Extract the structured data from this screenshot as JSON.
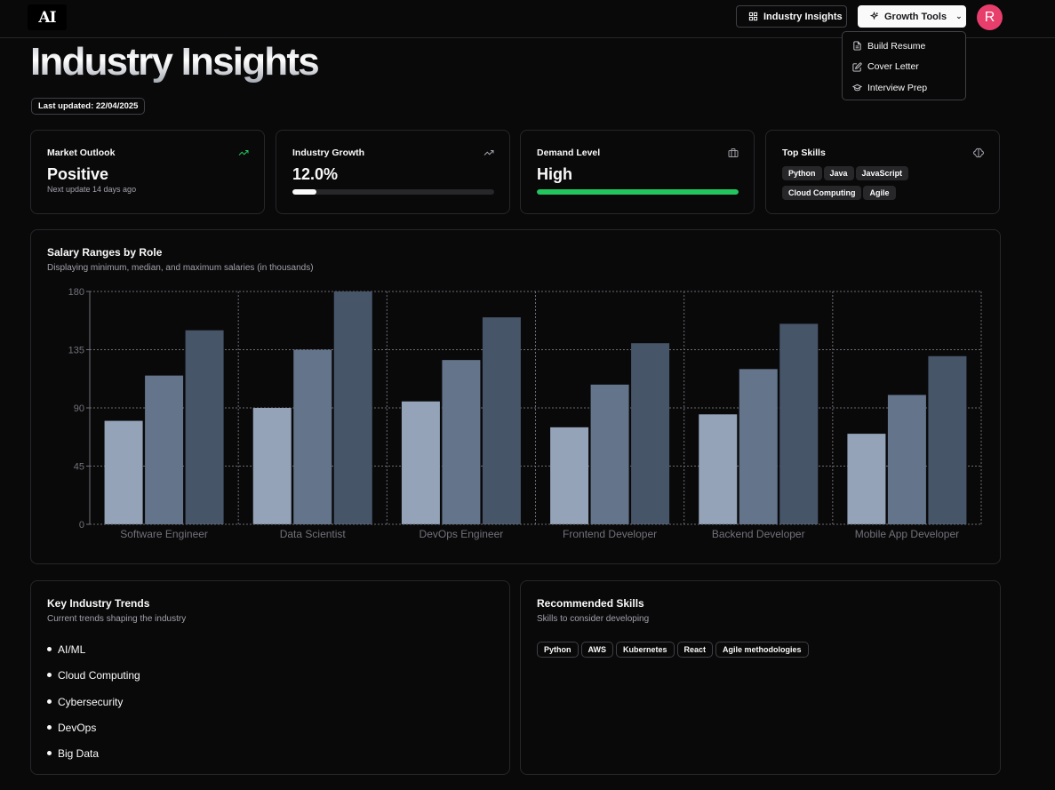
{
  "header": {
    "logo": "AI",
    "insights_label": "Industry Insights",
    "growth_label": "Growth Tools",
    "avatar_initial": "R"
  },
  "dropdown": {
    "items": [
      {
        "label": "Build Resume",
        "icon": "file-text-icon"
      },
      {
        "label": "Cover Letter",
        "icon": "pen-square-icon"
      },
      {
        "label": "Interview Prep",
        "icon": "graduation-cap-icon"
      }
    ]
  },
  "page": {
    "title": "Industry Insights",
    "last_updated": "Last updated: 22/04/2025"
  },
  "stats": {
    "outlook": {
      "label": "Market Outlook",
      "value": "Positive",
      "sub": "Next update 14 days ago",
      "icon": "trending-up-icon",
      "color": "#22c55e"
    },
    "growth": {
      "label": "Industry Growth",
      "value": "12.0%",
      "progress": 0.12,
      "icon": "trending-up-icon"
    },
    "demand": {
      "label": "Demand Level",
      "value": "High",
      "progress": 1.0,
      "color": "#22c55e",
      "icon": "briefcase-icon"
    },
    "skills": {
      "label": "Top Skills",
      "icon": "brain-icon",
      "items": [
        "Python",
        "Java",
        "JavaScript",
        "Cloud Computing",
        "Agile"
      ]
    }
  },
  "chart": {
    "title": "Salary Ranges by Role",
    "subtitle": "Displaying minimum, median, and maximum salaries (in thousands)"
  },
  "chart_data": {
    "type": "bar",
    "categories": [
      "Software Engineer",
      "Data Scientist",
      "DevOps Engineer",
      "Frontend Developer",
      "Backend Developer",
      "Mobile App Developer"
    ],
    "series": [
      {
        "values": [
          80,
          90,
          95,
          75,
          85,
          70
        ],
        "color": "#94a3b8"
      },
      {
        "values": [
          115,
          135,
          127,
          108,
          120,
          100
        ],
        "color": "#64748b"
      },
      {
        "values": [
          150,
          180,
          160,
          140,
          155,
          130
        ],
        "color": "#475569"
      }
    ],
    "yticks": [
      0,
      45,
      90,
      135,
      180
    ],
    "ylim": [
      0,
      180
    ],
    "grid": true
  },
  "trends": {
    "title": "Key Industry Trends",
    "subtitle": "Current trends shaping the industry",
    "items": [
      "AI/ML",
      "Cloud Computing",
      "Cybersecurity",
      "DevOps",
      "Big Data"
    ]
  },
  "recommended": {
    "title": "Recommended Skills",
    "subtitle": "Skills to consider developing",
    "items": [
      "Python",
      "AWS",
      "Kubernetes",
      "React",
      "Agile methodologies"
    ]
  }
}
